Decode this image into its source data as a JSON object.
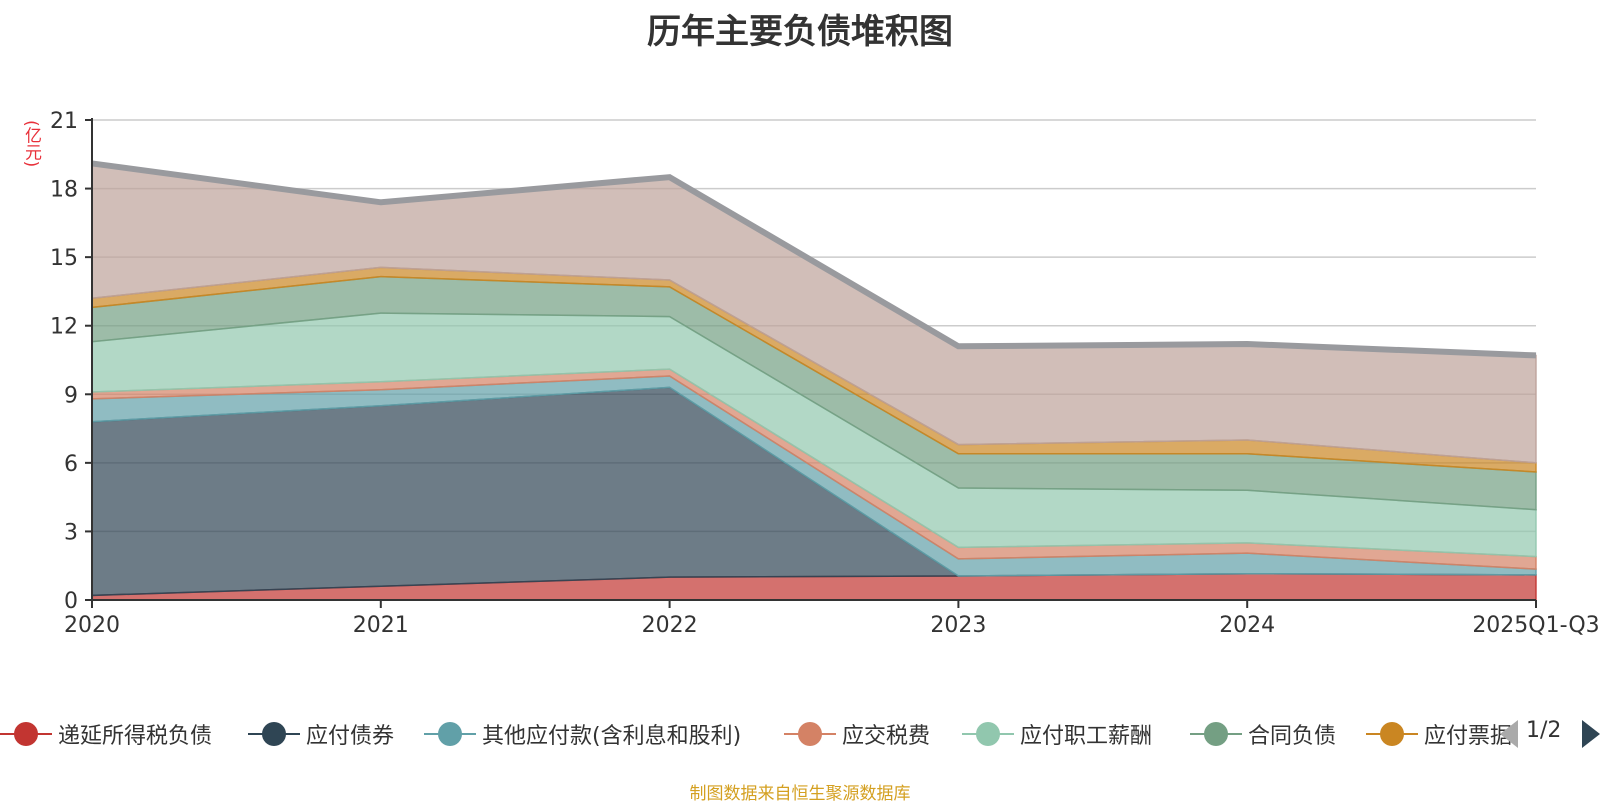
{
  "chart_data": {
    "type": "area",
    "stacked": true,
    "title": "历年主要负债堆积图",
    "ylabel": "(亿元)",
    "xlabel": "",
    "ylim": [
      0,
      21
    ],
    "yticks": [
      0,
      3,
      6,
      9,
      12,
      15,
      18,
      21
    ],
    "categories": [
      "2020",
      "2021",
      "2022",
      "2023",
      "2024",
      "2025Q1-Q3"
    ],
    "grid": true,
    "series": [
      {
        "name": "递延所得税负债",
        "color": "#c23531",
        "values": [
          0.2,
          0.6,
          1.0,
          1.05,
          1.15,
          1.1
        ]
      },
      {
        "name": "应付债券",
        "color": "#2f4554",
        "values": [
          7.6,
          7.9,
          8.3,
          0.0,
          0.0,
          0.0
        ]
      },
      {
        "name": "其他应付款(含利息和股利)",
        "color": "#61a0a8",
        "values": [
          1.0,
          0.7,
          0.5,
          0.75,
          0.9,
          0.25
        ]
      },
      {
        "name": "应交税费",
        "color": "#d48265",
        "values": [
          0.3,
          0.35,
          0.3,
          0.5,
          0.45,
          0.55
        ]
      },
      {
        "name": "应付职工薪酬",
        "color": "#91c7ae",
        "values": [
          2.2,
          3.0,
          2.3,
          2.6,
          2.3,
          2.05
        ]
      },
      {
        "name": "合同负债",
        "color": "#749f83",
        "values": [
          1.5,
          1.6,
          1.3,
          1.5,
          1.6,
          1.65
        ]
      },
      {
        "name": "应付票据",
        "color": "#ca8622",
        "values": [
          0.4,
          0.4,
          0.3,
          0.4,
          0.6,
          0.4
        ]
      },
      {
        "name": "",
        "color": "#bda29a",
        "values": [
          5.9,
          2.85,
          4.5,
          4.3,
          4.2,
          4.7
        ]
      }
    ],
    "legend": {
      "position": "bottom",
      "page": "1/2"
    }
  },
  "source_note": "制图数据来自恒生聚源数据库",
  "colors": {
    "total_line": "#999a9e",
    "axis": "#333333",
    "grid": "#cccccc",
    "unit_label": "#e8303a"
  }
}
